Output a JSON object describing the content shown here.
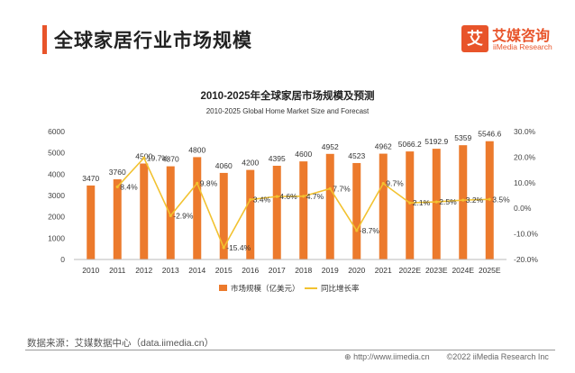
{
  "page": {
    "title": "全球家居行业市场规模",
    "logo_mark": "艾",
    "logo_cn": "艾媒咨询",
    "logo_en": "iiMedia Research",
    "source": "数据来源：艾媒数据中心（data.iimedia.cn）",
    "footer_url": "http://www.iimedia.cn",
    "footer_copyright": "©2022 iiMedia Research Inc",
    "footer_url_icon": "globe-icon"
  },
  "chart_data": {
    "type": "bar+line",
    "title": "2010-2025年全球家居市场规模及预测",
    "subtitle": "2010-2025 Global Home Market Size and Forecast",
    "categories": [
      "2010",
      "2011",
      "2012",
      "2013",
      "2014",
      "2015",
      "2016",
      "2017",
      "2018",
      "2019",
      "2020",
      "2021",
      "2022E",
      "2023E",
      "2024E",
      "2025E"
    ],
    "bar_series": {
      "name": "市场规模（亿美元）",
      "color": "#ec7a2c",
      "values": [
        3470,
        3760,
        4500,
        4370,
        4800,
        4060,
        4200,
        4395,
        4600,
        4952,
        4523,
        4962,
        5066.2,
        5192.9,
        5359,
        5546.6
      ],
      "labels": [
        "3470",
        "3760",
        "4500",
        "4370",
        "4800",
        "4060",
        "4200",
        "4395",
        "4600",
        "4952",
        "4523",
        "4962",
        "5066.2",
        "5192.9",
        "5359",
        "5546.6"
      ]
    },
    "line_series": {
      "name": "同比增长率",
      "color": "#f2c230",
      "values": [
        8.4,
        19.7,
        -2.9,
        9.8,
        -15.4,
        3.4,
        4.6,
        4.7,
        7.7,
        -8.7,
        9.7,
        2.1,
        2.5,
        3.2,
        3.5
      ],
      "labels": [
        "8.4%",
        "19.7%",
        "-2.9%",
        "9.8%",
        "-15.4%",
        "3.4%",
        "4.6%",
        "4.7%",
        "7.7%",
        "-8.7%",
        "9.7%",
        "2.1%",
        "2.5%",
        "3.2%",
        "3.5%"
      ]
    },
    "y_left": {
      "min": 0,
      "max": 6000,
      "ticks": [
        0,
        1000,
        2000,
        3000,
        4000,
        5000,
        6000
      ],
      "tick_labels": [
        "0",
        "1000",
        "2000",
        "3000",
        "4000",
        "5000",
        "6000"
      ]
    },
    "y_right": {
      "min": -20,
      "max": 30,
      "ticks": [
        -20,
        -10,
        0,
        10,
        20,
        30
      ],
      "tick_labels": [
        "-20.0%",
        "-10.0%",
        "0.0%",
        "10.0%",
        "20.0%",
        "30.0%"
      ]
    },
    "legend_position": "bottom",
    "grid": false
  }
}
